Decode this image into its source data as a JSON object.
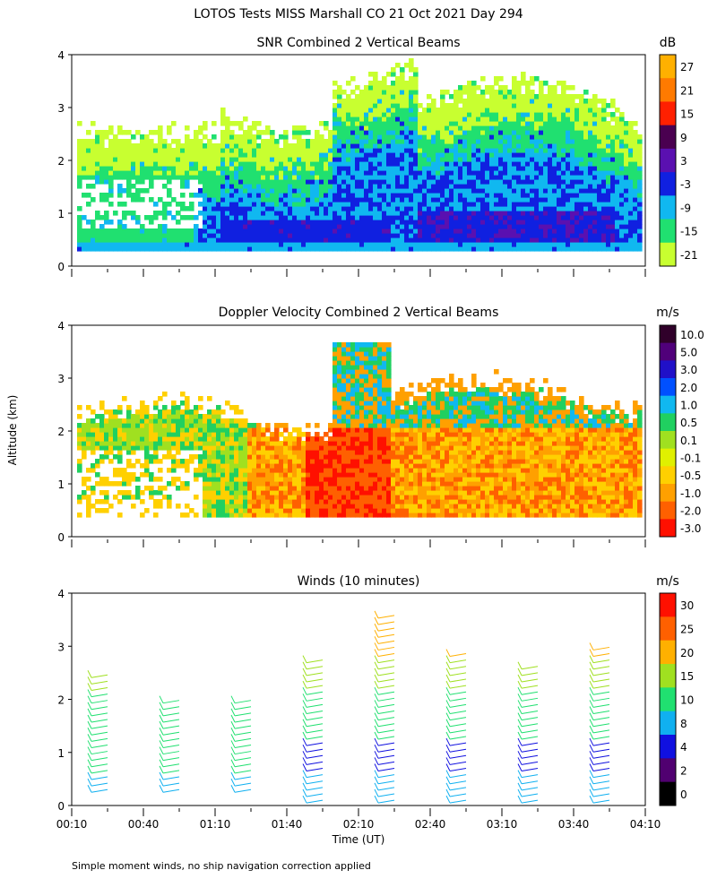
{
  "figure": {
    "title": "LOTOS Tests MISS Marshall CO  21 Oct 2021 Day 294",
    "ylabel": "Altitude (km)",
    "xlabel": "Time (UT)",
    "footnote": "Simple moment winds, no ship navigation correction applied",
    "x_ticks": [
      "00:10",
      "00:40",
      "01:10",
      "01:40",
      "02:10",
      "02:40",
      "03:10",
      "03:40",
      "04:10"
    ],
    "x_range_min": [
      10,
      250
    ],
    "y_range_km": [
      0,
      4
    ],
    "y_ticks": [
      "0",
      "1",
      "2",
      "3",
      "4"
    ]
  },
  "chart_data": [
    {
      "type": "heatmap",
      "title": "SNR Combined 2 Vertical Beams",
      "unit": "dB",
      "colorbar_labels": [
        "27",
        "21",
        "15",
        "9",
        "3",
        "-3",
        "-9",
        "-15",
        "-21"
      ],
      "colorbar_colors": [
        "#ffb000",
        "#ff7a00",
        "#ff2000",
        "#4a0050",
        "#5a10b0",
        "#1020e0",
        "#10b8f0",
        "#20e070",
        "#c8ff30"
      ],
      "xlabel": "",
      "ylabel": "Altitude (km)",
      "ylim": [
        0,
        4
      ],
      "description_layers": [
        {
          "name": "lower_strong",
          "value_db": -3,
          "alt_min_km": 0.3,
          "alt_max_km": 2.0
        },
        {
          "name": "mid",
          "value_db": -9,
          "alt_min_km": 0.3,
          "alt_max_km": 2.6
        },
        {
          "name": "weak",
          "value_db": -18,
          "alt_min_km": 0.3,
          "alt_max_km": 4.0
        }
      ]
    },
    {
      "type": "heatmap",
      "title": "Doppler Velocity Combined 2 Vertical Beams",
      "unit": "m/s",
      "colorbar_labels": [
        "10.0",
        "5.0",
        "3.0",
        "2.0",
        "1.0",
        "0.5",
        "0.1",
        "-0.1",
        "-0.5",
        "-1.0",
        "-2.0",
        "-3.0"
      ],
      "colorbar_colors": [
        "#30002a",
        "#50007a",
        "#2010c8",
        "#0050ff",
        "#10b8f0",
        "#20d060",
        "#a0e020",
        "#e0f000",
        "#ffd000",
        "#ffa000",
        "#ff6000",
        "#ff1000"
      ],
      "xlabel": "",
      "ylabel": "Altitude (km)",
      "ylim": [
        0,
        4
      ]
    },
    {
      "type": "scatter",
      "title": "Winds (10 minutes)",
      "unit": "m/s",
      "colorbar_labels": [
        "30",
        "25",
        "20",
        "15",
        "10",
        "8",
        "4",
        "2",
        "0"
      ],
      "colorbar_colors": [
        "#ff1000",
        "#ff6000",
        "#ffb000",
        "#a0e020",
        "#20e070",
        "#10b0f0",
        "#1010e0",
        "#500070",
        "#000000"
      ],
      "xlabel": "Time (UT)",
      "ylabel": "",
      "ylim": [
        0,
        4
      ],
      "profile_times": [
        "00:25",
        "00:55",
        "01:25",
        "01:55",
        "02:25",
        "02:55",
        "03:25",
        "03:55"
      ],
      "profile_alt_ranges_km": [
        [
          0.3,
          2.5
        ],
        [
          0.3,
          2.1
        ],
        [
          0.3,
          2.1
        ],
        [
          0.1,
          2.8
        ],
        [
          0.1,
          3.7
        ],
        [
          0.1,
          2.9
        ],
        [
          0.1,
          2.7
        ],
        [
          0.1,
          3.0
        ]
      ]
    }
  ]
}
